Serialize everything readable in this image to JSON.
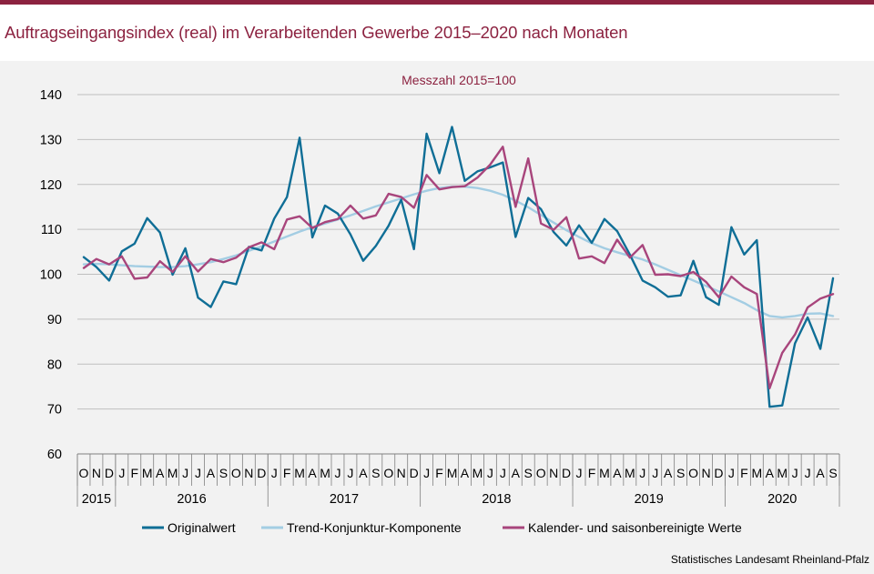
{
  "header": {
    "title": "Auftragseingangsindex (real) im Verarbeitenden Gewerbe 2015–2020 nach Monaten"
  },
  "footer": {
    "source": "Statistisches Landesamt Rheinland-Pfalz"
  },
  "colors": {
    "brand": "#8c2240",
    "original": "#0f6e96",
    "trend": "#a3cde3",
    "seasonal": "#a8457c",
    "grid": "#bfbfbf"
  },
  "chart_data": {
    "type": "line",
    "subtitle": "Messzahl 2015=100",
    "ylim": [
      60,
      140
    ],
    "yticks": [
      60,
      70,
      80,
      90,
      100,
      110,
      120,
      130,
      140
    ],
    "grid": "horizontal",
    "legend_position": "bottom",
    "month_labels": [
      "O",
      "N",
      "D",
      "J",
      "F",
      "M",
      "A",
      "M",
      "J",
      "J",
      "A",
      "S",
      "O",
      "N",
      "D",
      "J",
      "F",
      "M",
      "A",
      "M",
      "J",
      "J",
      "A",
      "S",
      "O",
      "N",
      "D",
      "J",
      "F",
      "M",
      "A",
      "M",
      "J",
      "J",
      "A",
      "S",
      "O",
      "N",
      "D",
      "J",
      "F",
      "M",
      "A",
      "M",
      "J",
      "J",
      "A",
      "S",
      "O",
      "N",
      "D",
      "J",
      "F",
      "M",
      "A",
      "M",
      "J",
      "J",
      "A",
      "S"
    ],
    "years": [
      {
        "label": "2015",
        "months": 3
      },
      {
        "label": "2016",
        "months": 12
      },
      {
        "label": "2017",
        "months": 12
      },
      {
        "label": "2018",
        "months": 12
      },
      {
        "label": "2019",
        "months": 12
      },
      {
        "label": "2020",
        "months": 9
      }
    ],
    "series": [
      {
        "name": "Originalwert",
        "color": "#0f6e96",
        "values": [
          103.8,
          101.6,
          98.6,
          105.1,
          106.8,
          112.5,
          109.3,
          99.9,
          105.8,
          94.8,
          92.7,
          98.4,
          97.8,
          106.1,
          105.3,
          112.4,
          117.2,
          130.4,
          108.2,
          115.3,
          113.5,
          108.9,
          103.0,
          106.3,
          110.8,
          116.6,
          105.6,
          131.3,
          122.5,
          132.8,
          120.8,
          122.9,
          123.8,
          124.9,
          108.3,
          117.0,
          114.5,
          109.4,
          106.4,
          110.9,
          107.0,
          112.3,
          109.6,
          104.4,
          98.6,
          97.1,
          95.0,
          95.3,
          103.0,
          94.9,
          93.2,
          110.5,
          104.4,
          107.6,
          70.5,
          70.8,
          84.6,
          90.4,
          83.4,
          99.1
        ]
      },
      {
        "name": "Trend-Konjunktur-Komponente",
        "color": "#a3cde3",
        "values": [
          102.2,
          102.3,
          102.2,
          102.0,
          101.8,
          101.7,
          101.6,
          101.6,
          101.8,
          102.2,
          102.7,
          103.4,
          104.2,
          105.2,
          106.2,
          107.3,
          108.4,
          109.5,
          110.5,
          111.3,
          112.2,
          113.1,
          114.1,
          115.1,
          116.0,
          116.9,
          117.8,
          118.6,
          119.2,
          119.5,
          119.5,
          119.2,
          118.6,
          117.7,
          116.4,
          114.9,
          113.2,
          111.5,
          109.8,
          108.3,
          106.9,
          105.8,
          104.9,
          104.1,
          103.3,
          102.2,
          101.0,
          99.8,
          98.6,
          97.4,
          96.2,
          94.9,
          93.6,
          92.0,
          90.7,
          90.4,
          90.7,
          91.2,
          91.3,
          90.7
        ]
      },
      {
        "name": "Kalender- und saisonbereinigte Werte",
        "color": "#a8457c",
        "values": [
          101.4,
          103.4,
          102.2,
          104.0,
          99.0,
          99.3,
          102.9,
          100.5,
          104.0,
          100.6,
          103.4,
          102.7,
          103.7,
          106.0,
          107.1,
          105.6,
          112.2,
          112.9,
          110.3,
          111.6,
          112.3,
          115.3,
          112.4,
          113.1,
          117.9,
          117.2,
          114.8,
          122.1,
          118.9,
          119.4,
          119.6,
          121.5,
          124.4,
          128.4,
          115.0,
          125.8,
          111.3,
          109.9,
          112.7,
          103.5,
          104.0,
          102.5,
          107.7,
          103.7,
          106.5,
          99.9,
          100.0,
          99.6,
          100.5,
          98.3,
          94.9,
          99.5,
          97.1,
          95.6,
          74.6,
          82.5,
          86.6,
          92.6,
          94.6,
          95.6
        ]
      }
    ]
  }
}
